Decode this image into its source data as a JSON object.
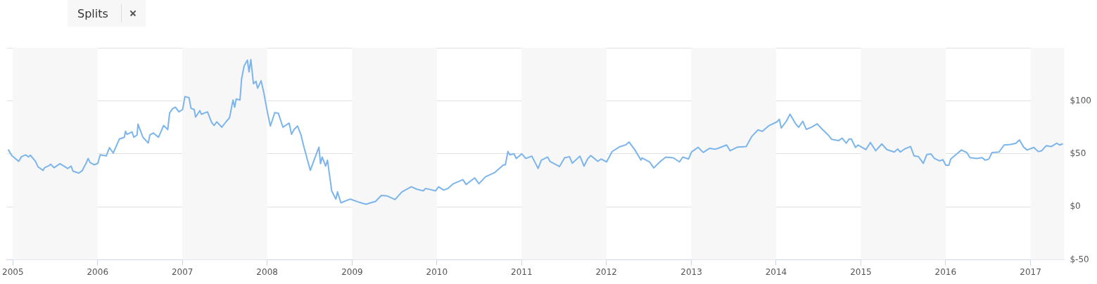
{
  "chart_data": {
    "type": "line",
    "annotations": [
      "Splits"
    ],
    "x": [
      "2004-12-13",
      "2004-12-27",
      "2005-01-26",
      "2005-02-07",
      "2005-02-25",
      "2005-03-09",
      "2005-03-17",
      "2005-04-08",
      "2005-04-19",
      "2005-05-11",
      "2005-05-18",
      "2005-06-06",
      "2005-06-13",
      "2005-06-27",
      "2005-07-23",
      "2005-08-25",
      "2005-09-09",
      "2005-09-17",
      "2005-10-12",
      "2005-10-26",
      "2005-11-14",
      "2005-11-21",
      "2005-11-29",
      "2005-12-17",
      "2006-01-02",
      "2006-01-12",
      "2006-02-07",
      "2006-02-21",
      "2006-03-09",
      "2006-04-05",
      "2006-04-26",
      "2006-05-01",
      "2006-05-07",
      "2006-05-29",
      "2006-06-06",
      "2006-06-20",
      "2006-06-24",
      "2006-07-15",
      "2006-08-07",
      "2006-08-14",
      "2006-08-29",
      "2006-09-20",
      "2006-10-12",
      "2006-10-30",
      "2006-11-07",
      "2006-11-18",
      "2006-12-02",
      "2006-12-17",
      "2007-01-02",
      "2007-01-12",
      "2007-01-30",
      "2007-02-07",
      "2007-02-21",
      "2007-02-27",
      "2007-03-17",
      "2007-03-24",
      "2007-04-19",
      "2007-05-07",
      "2007-05-18",
      "2007-05-29",
      "2007-06-20",
      "2007-07-08",
      "2007-07-23",
      "2007-08-07",
      "2007-08-14",
      "2007-08-21",
      "2007-09-06",
      "2007-09-13",
      "2007-09-24",
      "2007-10-08",
      "2007-10-15",
      "2007-10-23",
      "2007-11-03",
      "2007-11-14",
      "2007-11-21",
      "2007-12-06",
      "2007-12-17",
      "2008-01-02",
      "2008-01-15",
      "2008-02-03",
      "2008-02-18",
      "2008-03-09",
      "2008-03-24",
      "2008-04-05",
      "2008-04-15",
      "2008-04-26",
      "2008-05-11",
      "2008-05-25",
      "2008-06-09",
      "2008-07-05",
      "2008-07-23",
      "2008-08-11",
      "2008-08-18",
      "2008-08-25",
      "2008-09-09",
      "2008-09-17",
      "2008-10-05",
      "2008-10-23",
      "2008-10-30",
      "2008-11-14",
      "2008-12-24",
      "2009-01-26",
      "2009-02-21",
      "2009-03-02",
      "2009-04-12",
      "2009-05-07",
      "2009-06-02",
      "2009-07-05",
      "2009-08-03",
      "2009-09-13",
      "2009-10-05",
      "2009-11-03",
      "2009-11-14",
      "2009-12-27",
      "2010-01-08",
      "2010-01-30",
      "2010-02-18",
      "2010-03-13",
      "2010-04-23",
      "2010-05-07",
      "2010-06-13",
      "2010-07-01",
      "2010-07-30",
      "2010-09-06",
      "2010-10-15",
      "2010-10-23",
      "2010-11-03",
      "2010-11-11",
      "2010-11-29",
      "2010-12-09",
      "2011-01-02",
      "2011-01-19",
      "2011-02-14",
      "2011-03-13",
      "2011-03-27",
      "2011-04-23",
      "2011-05-03",
      "2011-06-13",
      "2011-07-05",
      "2011-07-26",
      "2011-08-07",
      "2011-09-09",
      "2011-09-27",
      "2011-10-12",
      "2011-10-26",
      "2011-11-25",
      "2011-12-09",
      "2012-01-02",
      "2012-01-26",
      "2012-02-28",
      "2012-03-24",
      "2012-04-08",
      "2012-05-03",
      "2012-05-29",
      "2012-06-02",
      "2012-07-05",
      "2012-07-23",
      "2012-08-21",
      "2012-09-13",
      "2012-10-15",
      "2012-11-11",
      "2012-11-25",
      "2012-12-20",
      "2013-01-02",
      "2013-01-30",
      "2013-02-21",
      "2013-03-20",
      "2013-04-15",
      "2013-04-26",
      "2013-06-02",
      "2013-06-17",
      "2013-07-19",
      "2013-08-25",
      "2013-09-17",
      "2013-10-15",
      "2013-11-03",
      "2013-12-02",
      "2014-01-05",
      "2014-01-15",
      "2014-01-23",
      "2014-02-14",
      "2014-03-02",
      "2014-03-24",
      "2014-04-08",
      "2014-04-26",
      "2014-05-11",
      "2014-06-06",
      "2014-06-27",
      "2014-07-19",
      "2014-08-11",
      "2014-08-29",
      "2014-09-27",
      "2014-10-12",
      "2014-10-30",
      "2014-11-11",
      "2014-11-21",
      "2014-12-09",
      "2014-12-20",
      "2015-01-23",
      "2015-02-11",
      "2015-03-06",
      "2015-04-01",
      "2015-04-23",
      "2015-05-25",
      "2015-06-09",
      "2015-06-20",
      "2015-07-08",
      "2015-08-03",
      "2015-08-18",
      "2015-09-06",
      "2015-09-27",
      "2015-10-12",
      "2015-10-30",
      "2015-11-14",
      "2015-12-06",
      "2015-12-20",
      "2016-01-02",
      "2016-01-15",
      "2016-01-23",
      "2016-02-18",
      "2016-03-09",
      "2016-04-01",
      "2016-04-15",
      "2016-05-14",
      "2016-06-06",
      "2016-06-20",
      "2016-07-05",
      "2016-07-19",
      "2016-08-18",
      "2016-09-09",
      "2016-10-08",
      "2016-10-30",
      "2016-11-14",
      "2016-12-02",
      "2016-12-17",
      "2017-01-15",
      "2017-02-03",
      "2017-02-18",
      "2017-03-09",
      "2017-04-01",
      "2017-04-23",
      "2017-05-07",
      "2017-05-18"
    ],
    "series": [
      {
        "color": "#7cb5ec",
        "values": [
          53.6,
          48.4,
          42.9,
          47.3,
          49,
          47,
          48.7,
          43,
          37.8,
          34.4,
          37,
          38.9,
          40.2,
          36.9,
          40.7,
          36.2,
          38.4,
          33.6,
          31.8,
          34,
          41.8,
          45.6,
          41.8,
          39.6,
          41.1,
          49.1,
          48,
          55.8,
          50.7,
          64,
          65.6,
          71.3,
          68.4,
          70.7,
          65.6,
          67.8,
          78,
          65.6,
          60.2,
          67.8,
          69.6,
          65.6,
          76.7,
          72.9,
          88.4,
          92.2,
          94,
          89.6,
          91.8,
          104,
          102.9,
          92.9,
          91.8,
          84.7,
          90.7,
          87.3,
          89.6,
          79.6,
          76.7,
          80.2,
          75.1,
          80.2,
          84,
          100.7,
          94,
          101.8,
          100.7,
          120.7,
          132.9,
          138.4,
          127.3,
          138.9,
          116.2,
          118.4,
          111.8,
          118.9,
          108.4,
          89.6,
          76.2,
          88.9,
          88.4,
          75.1,
          77.3,
          78.9,
          68.4,
          72.9,
          76.2,
          68.4,
          55.1,
          34.4,
          45.1,
          56.2,
          40.7,
          46.9,
          38.4,
          44,
          15.1,
          7.3,
          14,
          3.8,
          7.3,
          4.7,
          2.9,
          2.4,
          5.1,
          10.7,
          10.2,
          6.9,
          14,
          18.9,
          16.7,
          15.1,
          17.3,
          15.1,
          18.9,
          15.8,
          17.3,
          21.8,
          25.6,
          21.1,
          27.3,
          21.8,
          28.4,
          32.2,
          39.6,
          39.6,
          52.2,
          49.1,
          50,
          45.6,
          50,
          45.6,
          47.8,
          36.2,
          44,
          46.9,
          42.9,
          38,
          46.2,
          47.3,
          41.1,
          47.8,
          38.4,
          45.1,
          48.4,
          42.9,
          45.1,
          42.4,
          52.2,
          56.7,
          58.4,
          61.1,
          53.6,
          44,
          46.2,
          42.4,
          36.7,
          42.9,
          46.9,
          46.2,
          42.4,
          46.9,
          45.1,
          51.8,
          56.2,
          51.3,
          55.1,
          54.4,
          55.2,
          58.3,
          52.9,
          56.4,
          56.9,
          66,
          72.6,
          71.2,
          76.7,
          80.2,
          82.6,
          74.3,
          80.7,
          87.4,
          79,
          75,
          80.7,
          73.1,
          75.5,
          78.3,
          73.1,
          68.3,
          63.6,
          62.4,
          64.8,
          60,
          64,
          64,
          56,
          58.3,
          54,
          60.7,
          52.9,
          59.3,
          54,
          51.7,
          54.5,
          51.7,
          54.5,
          56.9,
          48.1,
          47.4,
          41,
          49.3,
          49.8,
          45.7,
          43.3,
          44.5,
          39.3,
          39.3,
          45,
          49.8,
          53.6,
          51.2,
          46.4,
          45.5,
          46.4,
          44,
          45,
          51.2,
          51.7,
          58.3,
          58.8,
          60,
          63.1,
          56.4,
          53.6,
          56,
          52.1,
          52.9,
          57.6,
          56.9,
          60,
          58.3,
          59.3
        ]
      }
    ],
    "xlim": [
      "2004-12-06",
      "2017-05-26"
    ],
    "xticks": [
      "2005",
      "2006",
      "2007",
      "2008",
      "2009",
      "2010",
      "2011",
      "2012",
      "2013",
      "2014",
      "2015",
      "2016",
      "2017"
    ],
    "ylim": [
      -50,
      150
    ],
    "yticks": [
      {
        "value": -50,
        "label": "$-50"
      },
      {
        "value": 0,
        "label": "$0"
      },
      {
        "value": 50,
        "label": "$50"
      },
      {
        "value": 100,
        "label": "$100"
      },
      {
        "value": 150,
        "label": null
      }
    ],
    "bands": [
      {
        "axis": "x",
        "from": "2005",
        "to": "2006",
        "color": "#f7f7f7"
      },
      {
        "axis": "x",
        "from": "2007",
        "to": "2008",
        "color": "#f7f7f7"
      },
      {
        "axis": "x",
        "from": "2009",
        "to": "2010",
        "color": "#f7f7f7"
      },
      {
        "axis": "x",
        "from": "2011",
        "to": "2012",
        "color": "#f7f7f7"
      },
      {
        "axis": "x",
        "from": "2013",
        "to": "2014",
        "color": "#f7f7f7"
      },
      {
        "axis": "x",
        "from": "2015",
        "to": "2016",
        "color": "#f7f7f7"
      },
      {
        "axis": "x",
        "from": "2017",
        "to": "2017-05-26",
        "color": "#f7f7f7"
      }
    ],
    "grid": "y",
    "legend": false,
    "marker": "none",
    "line_style": "solid"
  }
}
